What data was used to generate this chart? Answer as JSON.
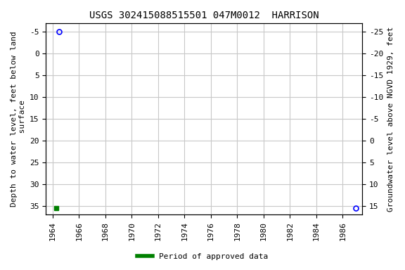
{
  "title": "USGS 302415088515501 047M0012  HARRISON",
  "left_ylabel": "Depth to water level, feet below land\n surface",
  "right_ylabel": "Groundwater level above NGVD 1929, feet",
  "xlim": [
    1963.5,
    1987.5
  ],
  "ylim_left": [
    -7,
    37
  ],
  "ylim_right": [
    17,
    -27
  ],
  "left_yticks": [
    -5,
    0,
    5,
    10,
    15,
    20,
    25,
    30,
    35
  ],
  "right_yticks": [
    15,
    10,
    5,
    0,
    -5,
    -10,
    -15,
    -20,
    -25
  ],
  "xticks": [
    1964,
    1966,
    1968,
    1970,
    1972,
    1974,
    1976,
    1978,
    1980,
    1982,
    1984,
    1986
  ],
  "point1_x": 1964.5,
  "point1_y": -5.0,
  "point2_x": 1987.0,
  "point2_y": 35.5,
  "green_x": 1964.3,
  "green_y": 35.5,
  "blue_color": "#0000ff",
  "green_color": "#008000",
  "background_color": "#ffffff",
  "grid_color": "#c8c8c8",
  "legend_label": "Period of approved data",
  "title_fontsize": 10,
  "axis_fontsize": 8,
  "tick_fontsize": 8
}
